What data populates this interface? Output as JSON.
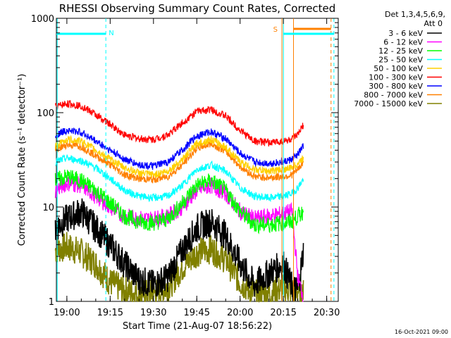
{
  "chart_data": {
    "type": "line",
    "title": "RHESSI Observing Summary Count Rates, Corrected",
    "xlabel": "Start Time (21-Aug-07 18:56:22)",
    "ylabel": "Corrected Count Rate (s⁻¹ detector⁻¹)",
    "y_scale": "log",
    "ylim": [
      1,
      1000
    ],
    "xlim": [
      "18:56:22",
      "20:34:00"
    ],
    "x_ticks": [
      "19:00",
      "19:15",
      "19:30",
      "19:45",
      "20:00",
      "20:15",
      "20:30"
    ],
    "y_ticks": [
      "1",
      "10",
      "100",
      "1000"
    ],
    "grid": false,
    "legend": {
      "position": "right",
      "header": [
        "Det 1,3,4,5,6,9,",
        "Att 0"
      ]
    },
    "series": [
      {
        "name": "3 - 6 keV",
        "color": "#000000",
        "x": [
          "18:56",
          "19:00",
          "19:05",
          "19:10",
          "19:15",
          "19:20",
          "19:25",
          "19:30",
          "19:35",
          "19:40",
          "19:45",
          "19:50",
          "19:55",
          "20:00",
          "20:05",
          "20:10",
          "20:15",
          "20:18",
          "20:20",
          "20:22"
        ],
        "y": [
          6,
          7.5,
          9,
          6,
          4,
          2.5,
          1.7,
          1.5,
          1.8,
          3.5,
          6,
          7,
          5,
          2.5,
          1.5,
          2,
          2.5,
          1.4,
          1.3,
          3.5
        ]
      },
      {
        "name": "6 - 12 keV",
        "color": "#ff00ff",
        "x": [
          "18:56",
          "19:00",
          "19:05",
          "19:10",
          "19:15",
          "19:20",
          "19:25",
          "19:30",
          "19:35",
          "19:40",
          "19:45",
          "19:50",
          "19:55",
          "20:00",
          "20:05",
          "20:10",
          "20:15",
          "20:18",
          "20:20",
          "20:22"
        ],
        "y": [
          15,
          18,
          17,
          13,
          10,
          8,
          7.5,
          7.5,
          8,
          10,
          15,
          17,
          14,
          9,
          7.5,
          8,
          8.5,
          9,
          1.8,
          1.1
        ]
      },
      {
        "name": "12 - 25 keV",
        "color": "#00ff00",
        "x": [
          "18:56",
          "19:00",
          "19:05",
          "19:10",
          "19:15",
          "19:20",
          "19:25",
          "19:30",
          "19:35",
          "19:40",
          "19:45",
          "19:50",
          "19:55",
          "20:00",
          "20:05",
          "20:10",
          "20:15",
          "20:18",
          "20:20",
          "20:22"
        ],
        "y": [
          19,
          21,
          19,
          15,
          11,
          8,
          7,
          6.8,
          7.5,
          11,
          17,
          19,
          15,
          9,
          6.5,
          6.5,
          6.8,
          7,
          8,
          9
        ]
      },
      {
        "name": "25 - 50 keV",
        "color": "#00ffff",
        "x": [
          "18:56",
          "19:00",
          "19:05",
          "19:10",
          "19:15",
          "19:20",
          "19:25",
          "19:30",
          "19:35",
          "19:40",
          "19:45",
          "19:50",
          "19:55",
          "20:00",
          "20:05",
          "20:10",
          "20:15",
          "20:18",
          "20:20",
          "20:22"
        ],
        "y": [
          30,
          33,
          31,
          26,
          20,
          15,
          13,
          12.5,
          13,
          17,
          25,
          28,
          24,
          16,
          13,
          12.5,
          13,
          14,
          16,
          20
        ]
      },
      {
        "name": "50 - 100 keV",
        "color": "#ffd000",
        "x": [
          "18:56",
          "19:00",
          "19:05",
          "19:10",
          "19:15",
          "19:20",
          "19:25",
          "19:30",
          "19:35",
          "19:40",
          "19:45",
          "19:50",
          "19:55",
          "20:00",
          "20:05",
          "20:10",
          "20:15",
          "20:18",
          "20:20",
          "20:22"
        ],
        "y": [
          44,
          52,
          50,
          40,
          32,
          26,
          23,
          22,
          24,
          32,
          47,
          52,
          43,
          30,
          25,
          24,
          25,
          26,
          29,
          33
        ]
      },
      {
        "name": "100 - 300 keV",
        "color": "#ff0000",
        "x": [
          "18:56",
          "19:00",
          "19:05",
          "19:10",
          "19:15",
          "19:20",
          "19:25",
          "19:30",
          "19:35",
          "19:40",
          "19:45",
          "19:50",
          "19:55",
          "20:00",
          "20:05",
          "20:10",
          "20:15",
          "20:18",
          "20:20",
          "20:22"
        ],
        "y": [
          115,
          125,
          118,
          95,
          75,
          58,
          53,
          52,
          58,
          78,
          103,
          108,
          92,
          65,
          50,
          48,
          50,
          52,
          58,
          75
        ]
      },
      {
        "name": "300 - 800 keV",
        "color": "#0000ff",
        "x": [
          "18:56",
          "19:00",
          "19:05",
          "19:10",
          "19:15",
          "19:20",
          "19:25",
          "19:30",
          "19:35",
          "19:40",
          "19:45",
          "19:50",
          "19:55",
          "20:00",
          "20:05",
          "20:10",
          "20:15",
          "20:18",
          "20:20",
          "20:22"
        ],
        "y": [
          58,
          65,
          62,
          50,
          40,
          32,
          28,
          27,
          30,
          40,
          57,
          63,
          53,
          37,
          30,
          29,
          30,
          32,
          36,
          45
        ]
      },
      {
        "name": "800 - 7000 keV",
        "color": "#ff8000",
        "x": [
          "18:56",
          "19:00",
          "19:05",
          "19:10",
          "19:15",
          "19:20",
          "19:25",
          "19:30",
          "19:35",
          "19:40",
          "19:45",
          "19:50",
          "19:55",
          "20:00",
          "20:05",
          "20:10",
          "20:15",
          "20:18",
          "20:20",
          "20:22"
        ],
        "y": [
          40,
          46,
          44,
          35,
          28,
          22,
          20,
          19.5,
          21,
          28,
          42,
          47,
          39,
          27,
          21,
          20.5,
          21,
          22,
          25,
          30
        ]
      },
      {
        "name": "7000 - 15000 keV",
        "color": "#808000",
        "x": [
          "18:56",
          "19:00",
          "19:05",
          "19:10",
          "19:15",
          "19:20",
          "19:25",
          "19:30",
          "19:35",
          "19:40",
          "19:45",
          "19:50",
          "19:55",
          "20:00",
          "20:05",
          "20:10",
          "20:15",
          "20:18",
          "20:20",
          "20:22"
        ],
        "y": [
          3.5,
          3.8,
          3.3,
          2.5,
          1.6,
          1.3,
          1.2,
          1.2,
          1.4,
          2.3,
          3.3,
          3.6,
          2.8,
          1.6,
          1.2,
          1.2,
          1.4,
          1.3,
          1.3,
          1.2
        ]
      }
    ],
    "annotations": {
      "night_label": "N",
      "saa_label": "S",
      "timestamp": "16-Oct-2021 09:00"
    }
  }
}
